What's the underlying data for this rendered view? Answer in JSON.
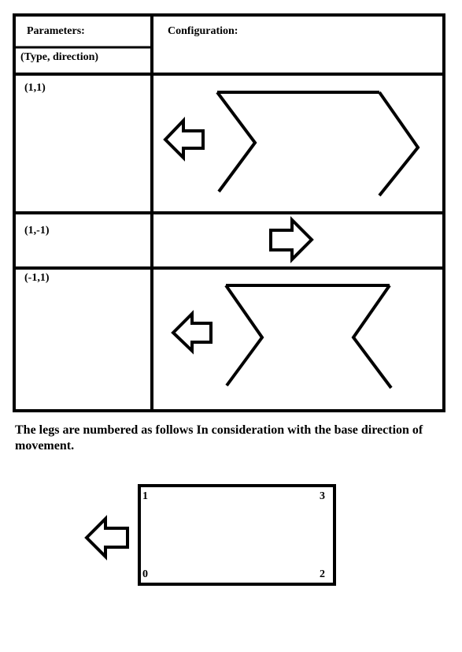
{
  "table": {
    "header_params": "Parameters:",
    "header_config": "Configuration:",
    "header_sub": "(Type, direction)",
    "rows": [
      {
        "param": "(1,1)",
        "direction": "left"
      },
      {
        "param": "(1,-1)",
        "direction": "right"
      },
      {
        "param": "(-1,1)",
        "direction": "left"
      }
    ]
  },
  "note": "The legs are numbered as follows In consideration with the base direction of movement.",
  "base": {
    "direction": "left",
    "legs": {
      "top_left": "1",
      "top_right": "3",
      "bottom_left": "0",
      "bottom_right": "2"
    }
  }
}
